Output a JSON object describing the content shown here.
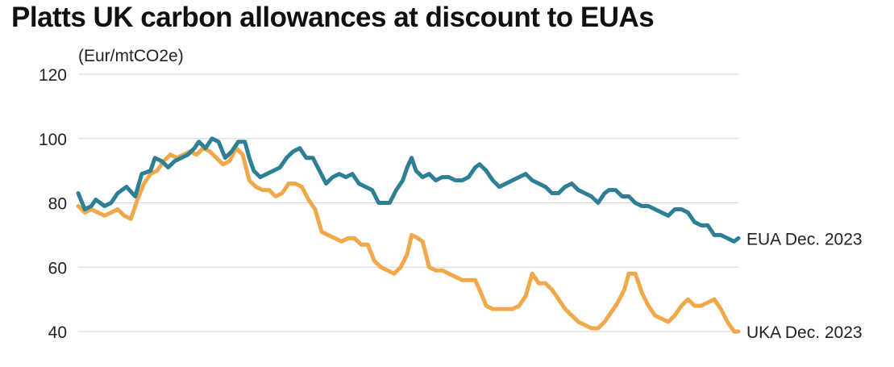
{
  "header": {
    "title": "Platts UK carbon allowances at discount to EUAs",
    "unit": "(Eur/mtCO2e)"
  },
  "chart_data": {
    "type": "line",
    "title": "Platts UK carbon allowances at discount to EUAs",
    "ylabel": "(Eur/mtCO2e)",
    "xlabel": "",
    "ylim": [
      38,
      120
    ],
    "yticks": [
      40,
      60,
      80,
      100,
      120
    ],
    "grid": true,
    "legend": "end-of-line labels",
    "x_index_count": 200,
    "series": [
      {
        "name": "EUA Dec. 2023",
        "color": "#2e7f96",
        "points": [
          [
            0,
            83
          ],
          [
            3,
            78
          ],
          [
            6,
            79
          ],
          [
            8,
            81
          ],
          [
            12,
            79
          ],
          [
            15,
            80
          ],
          [
            18,
            83
          ],
          [
            22,
            85
          ],
          [
            26,
            82
          ],
          [
            29,
            89
          ],
          [
            33,
            90
          ],
          [
            35,
            94
          ],
          [
            38,
            93
          ],
          [
            41,
            91
          ],
          [
            44,
            93
          ],
          [
            47,
            94
          ],
          [
            50,
            95
          ],
          [
            53,
            97
          ],
          [
            55,
            99
          ],
          [
            58,
            97
          ],
          [
            61,
            100
          ],
          [
            64,
            99
          ],
          [
            67,
            94
          ],
          [
            70,
            96
          ],
          [
            73,
            99
          ],
          [
            76,
            99
          ],
          [
            78,
            94
          ],
          [
            80,
            90
          ],
          [
            83,
            88
          ],
          [
            86,
            89
          ],
          [
            89,
            90
          ],
          [
            92,
            91
          ],
          [
            95,
            94
          ],
          [
            98,
            96
          ],
          [
            101,
            97
          ],
          [
            104,
            94
          ],
          [
            107,
            94
          ],
          [
            110,
            90
          ],
          [
            113,
            86
          ],
          [
            116,
            88
          ],
          [
            119,
            89
          ],
          [
            122,
            88
          ],
          [
            125,
            89
          ],
          [
            128,
            86
          ],
          [
            131,
            85
          ],
          [
            134,
            84
          ],
          [
            137,
            80
          ],
          [
            140,
            80
          ],
          [
            142,
            80
          ],
          [
            145,
            84
          ],
          [
            148,
            87
          ],
          [
            150,
            91
          ],
          [
            152,
            94
          ],
          [
            154,
            90
          ],
          [
            157,
            88
          ],
          [
            160,
            89
          ],
          [
            163,
            87
          ],
          [
            166,
            88
          ],
          [
            169,
            88
          ],
          [
            172,
            87
          ],
          [
            175,
            87
          ],
          [
            178,
            88
          ],
          [
            181,
            91
          ],
          [
            183,
            92
          ],
          [
            186,
            90
          ],
          [
            189,
            87
          ],
          [
            192,
            85
          ],
          [
            195,
            86
          ],
          [
            198,
            87
          ],
          [
            201,
            88
          ],
          [
            204,
            89
          ],
          [
            207,
            87
          ],
          [
            210,
            86
          ],
          [
            213,
            85
          ],
          [
            216,
            83
          ],
          [
            219,
            83
          ],
          [
            222,
            85
          ],
          [
            225,
            86
          ],
          [
            228,
            84
          ],
          [
            231,
            83
          ],
          [
            234,
            82
          ],
          [
            237,
            80
          ],
          [
            240,
            83
          ],
          [
            242,
            84
          ],
          [
            245,
            84
          ],
          [
            248,
            82
          ],
          [
            251,
            82
          ],
          [
            254,
            80
          ],
          [
            257,
            79
          ],
          [
            260,
            79
          ],
          [
            263,
            78
          ],
          [
            266,
            77
          ],
          [
            269,
            76
          ],
          [
            272,
            78
          ],
          [
            275,
            78
          ],
          [
            278,
            77
          ],
          [
            281,
            74
          ],
          [
            284,
            73
          ],
          [
            287,
            73
          ],
          [
            290,
            70
          ],
          [
            293,
            70
          ],
          [
            296,
            69
          ],
          [
            299,
            68
          ],
          [
            301,
            69
          ]
        ]
      },
      {
        "name": "UKA Dec. 2023",
        "color": "#f0a84a",
        "points": [
          [
            0,
            79
          ],
          [
            3,
            77
          ],
          [
            6,
            78
          ],
          [
            9,
            77
          ],
          [
            12,
            76
          ],
          [
            15,
            77
          ],
          [
            18,
            78
          ],
          [
            21,
            76
          ],
          [
            24,
            75
          ],
          [
            27,
            81
          ],
          [
            30,
            86
          ],
          [
            33,
            89
          ],
          [
            36,
            90
          ],
          [
            39,
            93
          ],
          [
            42,
            95
          ],
          [
            45,
            94
          ],
          [
            48,
            95
          ],
          [
            51,
            96
          ],
          [
            54,
            95
          ],
          [
            57,
            97
          ],
          [
            60,
            96
          ],
          [
            63,
            94
          ],
          [
            66,
            92
          ],
          [
            69,
            93
          ],
          [
            72,
            97
          ],
          [
            75,
            95
          ],
          [
            78,
            87
          ],
          [
            81,
            85
          ],
          [
            84,
            84
          ],
          [
            87,
            84
          ],
          [
            90,
            82
          ],
          [
            93,
            83
          ],
          [
            96,
            86
          ],
          [
            99,
            86
          ],
          [
            102,
            85
          ],
          [
            105,
            81
          ],
          [
            108,
            78
          ],
          [
            111,
            71
          ],
          [
            114,
            70
          ],
          [
            117,
            69
          ],
          [
            120,
            68
          ],
          [
            123,
            69
          ],
          [
            126,
            69
          ],
          [
            129,
            67
          ],
          [
            132,
            67
          ],
          [
            135,
            62
          ],
          [
            138,
            60
          ],
          [
            141,
            59
          ],
          [
            144,
            58
          ],
          [
            147,
            60
          ],
          [
            150,
            64
          ],
          [
            152,
            70
          ],
          [
            155,
            69
          ],
          [
            157,
            68
          ],
          [
            160,
            60
          ],
          [
            163,
            59
          ],
          [
            166,
            59
          ],
          [
            169,
            58
          ],
          [
            172,
            57
          ],
          [
            175,
            56
          ],
          [
            178,
            56
          ],
          [
            181,
            56
          ],
          [
            183,
            53
          ],
          [
            186,
            48
          ],
          [
            189,
            47
          ],
          [
            192,
            47
          ],
          [
            195,
            47
          ],
          [
            198,
            47
          ],
          [
            201,
            48
          ],
          [
            204,
            51
          ],
          [
            207,
            58
          ],
          [
            210,
            55
          ],
          [
            213,
            55
          ],
          [
            216,
            53
          ],
          [
            219,
            50
          ],
          [
            222,
            47
          ],
          [
            225,
            45
          ],
          [
            228,
            43
          ],
          [
            231,
            42
          ],
          [
            234,
            41
          ],
          [
            237,
            41
          ],
          [
            240,
            43
          ],
          [
            243,
            46
          ],
          [
            246,
            49
          ],
          [
            249,
            53
          ],
          [
            251,
            58
          ],
          [
            254,
            58
          ],
          [
            257,
            52
          ],
          [
            260,
            48
          ],
          [
            263,
            45
          ],
          [
            266,
            44
          ],
          [
            269,
            43
          ],
          [
            272,
            45
          ],
          [
            275,
            48
          ],
          [
            278,
            50
          ],
          [
            281,
            48
          ],
          [
            284,
            48
          ],
          [
            287,
            49
          ],
          [
            290,
            50
          ],
          [
            293,
            47
          ],
          [
            296,
            43
          ],
          [
            299,
            40
          ],
          [
            301,
            40
          ]
        ]
      }
    ]
  }
}
